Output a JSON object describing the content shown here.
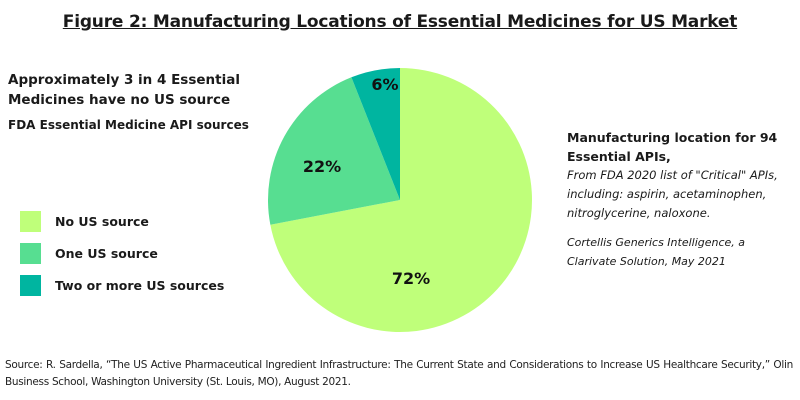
{
  "title": "Figure 2: Manufacturing Locations of Essential Medicines for US Market",
  "headline": "Approximately 3 in 4 Essential Medicines have no US source",
  "subhead": "FDA Essential Medicine API sources",
  "legend": [
    {
      "label": "No US source",
      "color": "#bfff7a"
    },
    {
      "label": "One US source",
      "color": "#57de91"
    },
    {
      "label": "Two or more US sources",
      "color": "#00b5a0"
    }
  ],
  "note": {
    "title": "Manufacturing location for 94 Essential APIs,",
    "description": "From FDA 2020 list of \"Critical\" APIs, including: aspirin, acetaminophen, nitroglycerine, naloxone.",
    "credit": "Cortellis Generics Intelligence, a Clarivate Solution, May 2021"
  },
  "source": "Source: R. Sardella, “The US Active Pharmaceutical Ingredient Infrastructure: The Current State and Considerations to Increase US Healthcare Security,” Olin Business School, Washington University (St. Louis, MO), August 2021.",
  "chart_data": {
    "type": "pie",
    "title": "Figure 2: Manufacturing Locations of Essential Medicines for US Market",
    "categories": [
      "No US source",
      "One US source",
      "Two or more US sources"
    ],
    "values": [
      72,
      22,
      6
    ],
    "labels": [
      "72%",
      "22%",
      "6%"
    ],
    "colors": [
      "#bfff7a",
      "#57de91",
      "#00b5a0"
    ],
    "start_angle": "12 o'clock, clockwise",
    "legend_position": "left",
    "total_apis": 94
  }
}
